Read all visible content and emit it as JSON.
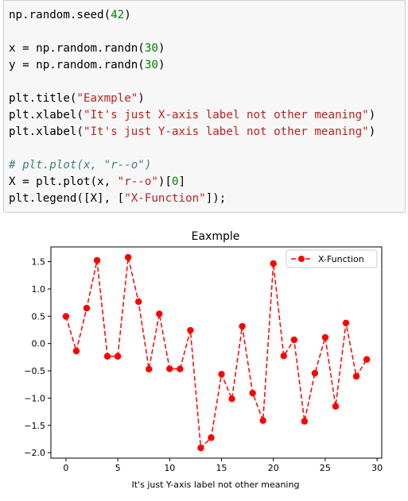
{
  "code_cell": {
    "lines": [
      [
        "np.random.seed(",
        "42",
        ")"
      ],
      [
        ""
      ],
      [
        "x = np.random.randn(",
        "30",
        ")"
      ],
      [
        "y = np.random.randn(",
        "30",
        ")"
      ],
      [
        ""
      ],
      [
        "plt.title(",
        "\"Eaxmple\"",
        ")"
      ],
      [
        "plt.xlabel(",
        "\"It's just X-axis label not other meaning\"",
        ")"
      ],
      [
        "plt.xlabel(",
        "\"It's just Y-axis label not other meaning\"",
        ")"
      ],
      [
        ""
      ],
      [
        "# plt.plot(x, \"r--o\")"
      ],
      [
        "X = plt.plot(x, ",
        "\"r--o\"",
        ")[",
        "0",
        "]"
      ],
      [
        "plt.legend([X], [",
        "\"X-Function\"",
        "]);"
      ]
    ]
  },
  "chart_data": {
    "type": "line",
    "title": "Eaxmple",
    "xlabel": "It's just Y-axis label not other meaning",
    "ylabel": "",
    "xlim": [
      -1.45,
      30.45
    ],
    "ylim": [
      -2.1,
      1.77
    ],
    "x_ticks": [
      "0",
      "5",
      "10",
      "15",
      "20",
      "25",
      "30"
    ],
    "x_tick_values": [
      0,
      5,
      10,
      15,
      20,
      25,
      30
    ],
    "y_ticks": [
      "−2.0",
      "−1.5",
      "−1.0",
      "−0.5",
      "0.0",
      "0.5",
      "1.0",
      "1.5"
    ],
    "y_tick_values": [
      -2.0,
      -1.5,
      -1.0,
      -0.5,
      0.0,
      0.5,
      1.0,
      1.5
    ],
    "legend_position": "upper right",
    "series": [
      {
        "name": "X-Function",
        "color": "#ff0000",
        "style": "r--o",
        "x": [
          0,
          1,
          2,
          3,
          4,
          5,
          6,
          7,
          8,
          9,
          10,
          11,
          12,
          13,
          14,
          15,
          16,
          17,
          18,
          19,
          20,
          21,
          22,
          23,
          24,
          25,
          26,
          27,
          28,
          29
        ],
        "y": [
          0.497,
          -0.138,
          0.648,
          1.523,
          -0.234,
          -0.234,
          1.579,
          0.767,
          -0.469,
          0.543,
          -0.463,
          -0.466,
          0.242,
          -1.913,
          -1.725,
          -0.562,
          -1.013,
          0.314,
          -0.908,
          -1.412,
          1.466,
          -0.226,
          0.068,
          -1.425,
          -0.544,
          0.111,
          -1.151,
          0.376,
          -0.601,
          -0.292
        ]
      }
    ]
  }
}
